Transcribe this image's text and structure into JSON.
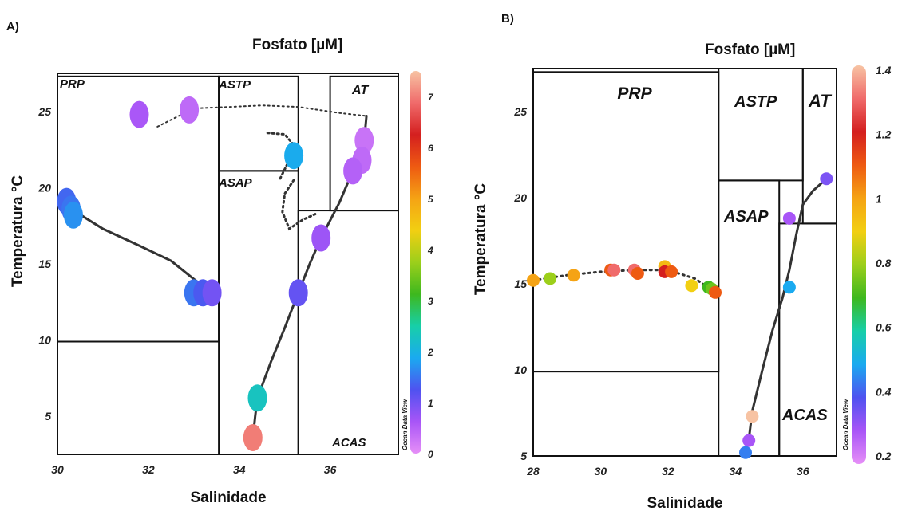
{
  "chart_data": [
    {
      "panel": "A)",
      "type": "scatter",
      "title": "Fosfato [µM]",
      "xlabel": "Salinidade",
      "ylabel": "Temperatura °C",
      "xlim": [
        30,
        37.5
      ],
      "ylim": [
        2.5,
        27.5
      ],
      "xticks": [
        "30",
        "32",
        "34",
        "36"
      ],
      "yticks": [
        "5",
        "10",
        "15",
        "20",
        "25"
      ],
      "colorbar": {
        "min": 0,
        "max": 7.5,
        "ticks": [
          "0",
          "1",
          "2",
          "3",
          "4",
          "5",
          "6",
          "7"
        ],
        "label": "Ocean Data View"
      },
      "regions": [
        {
          "name": "PRP",
          "salinity": [
            30,
            33.55
          ],
          "temperature": [
            9.9,
            27.3
          ]
        },
        {
          "name": "ASTP",
          "salinity": [
            33.55,
            35.3
          ],
          "temperature": [
            21.1,
            27.3
          ]
        },
        {
          "name": "ASAP",
          "salinity": [
            33.55,
            35.3
          ],
          "temperature": [
            2.5,
            21.1
          ]
        },
        {
          "name": "AT",
          "salinity": [
            36.0,
            37.5
          ],
          "temperature": [
            18.5,
            27.3
          ]
        },
        {
          "name": "ACAS",
          "salinity": [
            35.3,
            37.5
          ],
          "temperature": [
            2.5,
            18.5
          ]
        }
      ],
      "points": [
        {
          "salinity": 31.8,
          "temperature": 24.8,
          "phosphate": 0.6
        },
        {
          "salinity": 32.9,
          "temperature": 25.1,
          "phosphate": 0.4
        },
        {
          "salinity": 30.2,
          "temperature": 19.1,
          "phosphate": 1.4
        },
        {
          "salinity": 30.3,
          "temperature": 18.6,
          "phosphate": 1.5
        },
        {
          "salinity": 30.35,
          "temperature": 18.2,
          "phosphate": 1.7
        },
        {
          "salinity": 33.0,
          "temperature": 13.1,
          "phosphate": 1.5
        },
        {
          "salinity": 33.2,
          "temperature": 13.1,
          "phosphate": 1.3
        },
        {
          "salinity": 33.4,
          "temperature": 13.1,
          "phosphate": 1.0
        },
        {
          "salinity": 35.2,
          "temperature": 22.1,
          "phosphate": 1.9
        },
        {
          "salinity": 36.75,
          "temperature": 23.1,
          "phosphate": 0.3
        },
        {
          "salinity": 36.7,
          "temperature": 21.8,
          "phosphate": 0.4
        },
        {
          "salinity": 36.5,
          "temperature": 21.1,
          "phosphate": 0.5
        },
        {
          "salinity": 35.8,
          "temperature": 16.7,
          "phosphate": 0.7
        },
        {
          "salinity": 35.3,
          "temperature": 13.1,
          "phosphate": 1.1
        },
        {
          "salinity": 34.4,
          "temperature": 6.2,
          "phosphate": 2.3
        },
        {
          "salinity": 34.3,
          "temperature": 3.6,
          "phosphate": 7.0
        }
      ]
    },
    {
      "panel": "B)",
      "type": "scatter",
      "title": "Fosfato [µM]",
      "xlabel": "Salinidade",
      "ylabel": "Temperatura °C",
      "xlim": [
        28,
        37
      ],
      "ylim": [
        5,
        27.5
      ],
      "xticks": [
        "28",
        "30",
        "32",
        "34",
        "36"
      ],
      "yticks": [
        "5",
        "10",
        "15",
        "20",
        "25"
      ],
      "colorbar": {
        "min": 0.2,
        "max": 1.4,
        "ticks": [
          "0.2",
          "0.4",
          "0.6",
          "0.8",
          "1",
          "1.2",
          "1.4"
        ],
        "label": "Ocean Data View"
      },
      "regions": [
        {
          "name": "PRP",
          "salinity": [
            28,
            33.5
          ],
          "temperature": [
            9.9,
            27.3
          ]
        },
        {
          "name": "ASTP",
          "salinity": [
            33.5,
            36.0
          ],
          "temperature": [
            21.0,
            27.5
          ]
        },
        {
          "name": "ASAP",
          "salinity": [
            33.5,
            35.3
          ],
          "temperature": [
            5,
            21.0
          ]
        },
        {
          "name": "AT",
          "salinity": [
            36.0,
            37
          ],
          "temperature": [
            18.5,
            27.5
          ]
        },
        {
          "name": "ACAS",
          "salinity": [
            35.3,
            37
          ],
          "temperature": [
            5,
            18.5
          ]
        }
      ],
      "points": [
        {
          "salinity": 28.0,
          "temperature": 15.2,
          "phosphate": 1.0
        },
        {
          "salinity": 28.5,
          "temperature": 15.3,
          "phosphate": 0.8
        },
        {
          "salinity": 29.2,
          "temperature": 15.5,
          "phosphate": 1.0
        },
        {
          "salinity": 30.3,
          "temperature": 15.8,
          "phosphate": 1.1
        },
        {
          "salinity": 30.4,
          "temperature": 15.8,
          "phosphate": 1.3
        },
        {
          "salinity": 31.0,
          "temperature": 15.8,
          "phosphate": 1.3
        },
        {
          "salinity": 31.1,
          "temperature": 15.6,
          "phosphate": 1.1
        },
        {
          "salinity": 31.9,
          "temperature": 16.0,
          "phosphate": 0.95
        },
        {
          "salinity": 31.9,
          "temperature": 15.7,
          "phosphate": 1.2
        },
        {
          "salinity": 32.1,
          "temperature": 15.7,
          "phosphate": 1.1
        },
        {
          "salinity": 32.7,
          "temperature": 14.9,
          "phosphate": 0.9
        },
        {
          "salinity": 33.2,
          "temperature": 14.8,
          "phosphate": 0.7
        },
        {
          "salinity": 33.3,
          "temperature": 14.7,
          "phosphate": 0.75
        },
        {
          "salinity": 33.4,
          "temperature": 14.5,
          "phosphate": 1.1
        },
        {
          "salinity": 35.6,
          "temperature": 18.8,
          "phosphate": 0.3
        },
        {
          "salinity": 35.6,
          "temperature": 14.8,
          "phosphate": 0.5
        },
        {
          "salinity": 36.7,
          "temperature": 21.1,
          "phosphate": 0.35
        },
        {
          "salinity": 34.5,
          "temperature": 7.3,
          "phosphate": 1.4
        },
        {
          "salinity": 34.4,
          "temperature": 5.9,
          "phosphate": 0.3
        },
        {
          "salinity": 34.3,
          "temperature": 5.2,
          "phosphate": 0.45
        }
      ]
    }
  ],
  "colors": {
    "colormap": [
      "#e68ff7",
      "#a855f7",
      "#4f52f0",
      "#1aaaf0",
      "#17cfa8",
      "#3eb81e",
      "#9ccf1b",
      "#f2cf12",
      "#f5a314",
      "#ee5a12",
      "#d41f1f",
      "#f06b6b",
      "#f7c3a3"
    ],
    "line": "#333333"
  }
}
